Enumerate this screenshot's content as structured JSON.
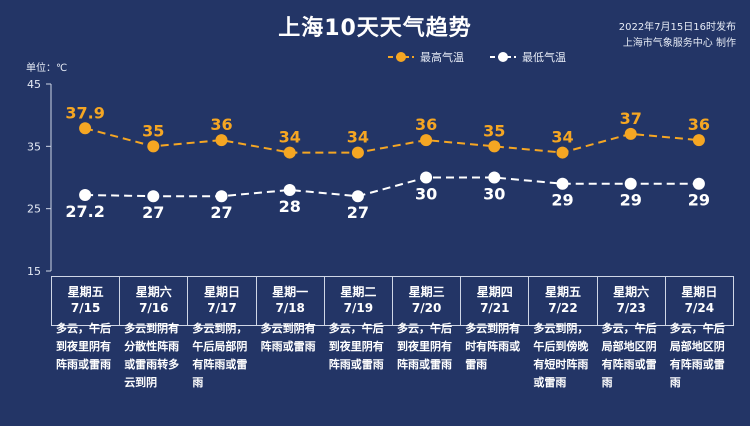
{
  "header": {
    "title": "上海10天天气趋势",
    "publish_time": "2022年7月15日16时发布",
    "publisher": "上海市气象服务中心 制作"
  },
  "chart_data": {
    "type": "line",
    "unit_label": "单位：℃",
    "ylim": [
      15,
      45
    ],
    "yticks": [
      15,
      25,
      35,
      45
    ],
    "categories": [
      "7/15",
      "7/16",
      "7/17",
      "7/18",
      "7/19",
      "7/20",
      "7/21",
      "7/22",
      "7/23",
      "7/24"
    ],
    "weekdays": [
      "星期五",
      "星期六",
      "星期日",
      "星期一",
      "星期二",
      "星期三",
      "星期四",
      "星期五",
      "星期六",
      "星期日"
    ],
    "series": [
      {
        "name": "最高气温",
        "color": "#f5a623",
        "values": [
          37.9,
          35,
          36,
          34,
          34,
          36,
          35,
          34,
          37,
          36
        ],
        "labels": [
          "37.9",
          "35",
          "36",
          "34",
          "34",
          "36",
          "35",
          "34",
          "37",
          "36"
        ]
      },
      {
        "name": "最低气温",
        "color": "#ffffff",
        "values": [
          27.2,
          27,
          27,
          28,
          27,
          30,
          30,
          29,
          29,
          29
        ],
        "labels": [
          "27.2",
          "27",
          "27",
          "28",
          "27",
          "30",
          "30",
          "29",
          "29",
          "29"
        ]
      }
    ],
    "descriptions": [
      "多云，午后到夜里阴有阵雨或雷雨",
      "多云到阴有分散性阵雨或雷雨转多云到阴",
      "多云到阴，午后局部阴有阵雨或雷雨",
      "多云到阴有阵雨或雷雨",
      "多云，午后到夜里阴有阵雨或雷雨",
      "多云，午后到夜里阴有阵雨或雷雨",
      "多云到阴有时有阵雨或雷雨",
      "多云到阴，午后到傍晚有短时阵雨或雷雨",
      "多云，午后局部地区阴有阵雨或雷雨",
      "多云，午后局部地区阴有阵雨或雷雨"
    ]
  }
}
